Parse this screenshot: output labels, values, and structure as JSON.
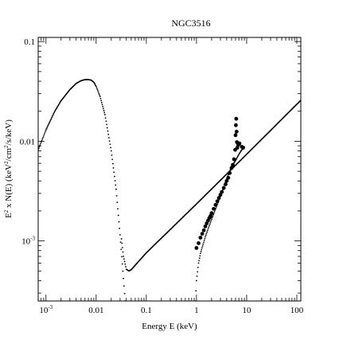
{
  "chart_data": {
    "type": "scatter",
    "title": "NGC3516",
    "xlabel": "Energy E (keV)",
    "ylabel_parts": [
      "E",
      "2",
      " x N(E) (keV",
      "2",
      "/cm",
      "2",
      "/s/keV)"
    ],
    "x_scale": "log",
    "y_scale": "log",
    "xlim": [
      0.0007,
      120
    ],
    "ylim": [
      0.00025,
      0.11
    ],
    "x_ticks": [
      {
        "value": 0.001,
        "base": "10",
        "exp": "-3"
      },
      {
        "value": 0.01,
        "label": "0.01"
      },
      {
        "value": 0.1,
        "label": "0.1"
      },
      {
        "value": 1,
        "label": "1"
      },
      {
        "value": 10,
        "label": "10"
      },
      {
        "value": 100,
        "label": "100"
      }
    ],
    "y_ticks": [
      {
        "value": 0.001,
        "base": "10",
        "exp": "-3"
      },
      {
        "value": 0.01,
        "label": "0.01"
      },
      {
        "value": 0.1,
        "label": "0.1"
      }
    ],
    "grid": false,
    "legend": "none",
    "series": [
      {
        "marker": "small-dots",
        "points": [
          [
            0.0007,
            0.0082
          ],
          [
            0.001,
            0.013
          ],
          [
            0.0015,
            0.02
          ],
          [
            0.002,
            0.0255
          ],
          [
            0.003,
            0.033
          ],
          [
            0.004,
            0.038
          ],
          [
            0.005,
            0.0405
          ],
          [
            0.006,
            0.0415
          ],
          [
            0.007,
            0.0415
          ],
          [
            0.008,
            0.041
          ],
          [
            0.009,
            0.039
          ],
          [
            0.01,
            0.0355
          ],
          [
            0.012,
            0.028
          ],
          [
            0.015,
            0.0185
          ],
          [
            0.02,
            0.008
          ],
          [
            0.025,
            0.0033
          ],
          [
            0.03,
            0.00115
          ],
          [
            0.035,
            0.00042
          ],
          [
            0.038,
            0.00025
          ]
        ]
      },
      {
        "marker": "small-dots",
        "points": [
          [
            0.032,
            0.00105
          ],
          [
            0.035,
            0.0007
          ],
          [
            0.04,
            0.00052
          ],
          [
            0.045,
            0.0005
          ],
          [
            0.05,
            0.000515
          ],
          [
            0.1,
            0.00076
          ],
          [
            1,
            0.00235
          ],
          [
            10,
            0.0074
          ],
          [
            100,
            0.0235
          ],
          [
            120,
            0.0257
          ]
        ]
      },
      {
        "marker": "small-dots",
        "points": [
          [
            0.95,
            0.00025
          ],
          [
            1.0,
            0.0004
          ],
          [
            1.1,
            0.0006
          ],
          [
            1.2,
            0.00075
          ],
          [
            1.5,
            0.0011
          ],
          [
            2,
            0.00165
          ],
          [
            3,
            0.0028
          ],
          [
            4,
            0.0042
          ],
          [
            5,
            0.0056
          ],
          [
            6,
            0.0064
          ],
          [
            7,
            0.0074
          ],
          [
            8,
            0.0082
          ],
          [
            9,
            0.0088
          ]
        ]
      },
      {
        "marker": "large-dots",
        "points": [
          [
            1.0,
            0.00085
          ],
          [
            1.1,
            0.00095
          ],
          [
            1.2,
            0.00108
          ],
          [
            1.3,
            0.00118
          ],
          [
            1.4,
            0.00128
          ],
          [
            1.5,
            0.0014
          ],
          [
            1.6,
            0.0015
          ],
          [
            1.7,
            0.0016
          ],
          [
            1.8,
            0.0017
          ],
          [
            1.9,
            0.00178
          ],
          [
            2.0,
            0.0019
          ],
          [
            2.2,
            0.0021
          ],
          [
            2.4,
            0.0023
          ],
          [
            2.6,
            0.0025
          ],
          [
            2.8,
            0.0027
          ],
          [
            3.0,
            0.0029
          ],
          [
            3.2,
            0.0031
          ],
          [
            3.5,
            0.0034
          ],
          [
            3.8,
            0.0037
          ],
          [
            4.0,
            0.004
          ],
          [
            4.3,
            0.0043
          ],
          [
            4.6,
            0.0048
          ],
          [
            5.0,
            0.0054
          ],
          [
            5.3,
            0.0058
          ],
          [
            5.6,
            0.0066
          ],
          [
            5.9,
            0.0082
          ],
          [
            6.0,
            0.0115
          ],
          [
            6.1,
            0.0145
          ],
          [
            6.2,
            0.0168
          ],
          [
            6.3,
            0.0125
          ],
          [
            6.4,
            0.0098
          ],
          [
            6.5,
            0.0086
          ],
          [
            6.8,
            0.0092
          ],
          [
            7.2,
            0.0095
          ],
          [
            8.0,
            0.0088
          ],
          [
            8.5,
            0.0086
          ]
        ]
      }
    ]
  }
}
